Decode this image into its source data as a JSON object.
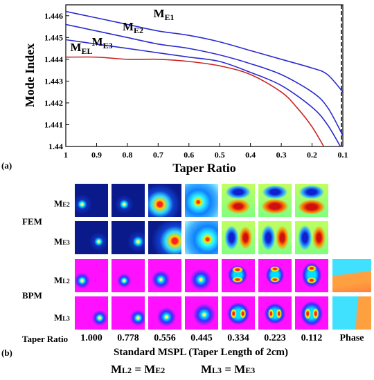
{
  "panel_a_label": "(a)",
  "panel_b_label": "(b)",
  "chart_data": {
    "type": "line",
    "xlabel": "Taper Ratio",
    "ylabel": "Mode Index",
    "xlim": [
      1,
      0.1
    ],
    "ylim": [
      1.44,
      1.4465
    ],
    "x_ticks": [
      "1",
      "0.9",
      "0.8",
      "0.7",
      "0.6",
      "0.5",
      "0.4",
      "0.3",
      "0.2",
      "0.1"
    ],
    "y_ticks": [
      "1.44",
      "1.441",
      "1.442",
      "1.443",
      "1.444",
      "1.445",
      "1.446"
    ],
    "x_reversed": true,
    "vertical_dashed_line_x": 0.1,
    "series": [
      {
        "name": "ME1",
        "color": "#2a2ad0",
        "points": [
          [
            1.0,
            1.4462
          ],
          [
            0.9,
            1.4459
          ],
          [
            0.8,
            1.4456
          ],
          [
            0.7,
            1.4453
          ],
          [
            0.6,
            1.4451
          ],
          [
            0.5,
            1.4448
          ],
          [
            0.4,
            1.4444
          ],
          [
            0.3,
            1.444
          ],
          [
            0.2,
            1.4436
          ],
          [
            0.15,
            1.4433
          ],
          [
            0.1,
            1.4425
          ]
        ]
      },
      {
        "name": "ME2",
        "color": "#2a2ad0",
        "points": [
          [
            1.0,
            1.4456
          ],
          [
            0.9,
            1.4453
          ],
          [
            0.8,
            1.445
          ],
          [
            0.7,
            1.4447
          ],
          [
            0.6,
            1.4445
          ],
          [
            0.5,
            1.4442
          ],
          [
            0.4,
            1.4438
          ],
          [
            0.3,
            1.4433
          ],
          [
            0.2,
            1.4425
          ],
          [
            0.15,
            1.4418
          ],
          [
            0.1,
            1.4405
          ]
        ]
      },
      {
        "name": "ME3",
        "color": "#2a2ad0",
        "points": [
          [
            1.0,
            1.4449
          ],
          [
            0.9,
            1.4447
          ],
          [
            0.8,
            1.4445
          ],
          [
            0.7,
            1.4443
          ],
          [
            0.6,
            1.4441
          ],
          [
            0.5,
            1.4439
          ],
          [
            0.4,
            1.4434
          ],
          [
            0.3,
            1.4428
          ],
          [
            0.2,
            1.4418
          ],
          [
            0.15,
            1.441
          ],
          [
            0.1,
            1.4398
          ]
        ]
      },
      {
        "name": "MEL",
        "color": "#cc2222",
        "points": [
          [
            1.0,
            1.4441
          ],
          [
            0.9,
            1.4441
          ],
          [
            0.8,
            1.444
          ],
          [
            0.7,
            1.444
          ],
          [
            0.6,
            1.4439
          ],
          [
            0.5,
            1.4437
          ],
          [
            0.4,
            1.4433
          ],
          [
            0.3,
            1.4425
          ],
          [
            0.25,
            1.4418
          ],
          [
            0.2,
            1.4409
          ],
          [
            0.15,
            1.4397
          ]
        ]
      }
    ],
    "curve_labels": [
      {
        "main": "M",
        "sub": "E1",
        "series": "ME1"
      },
      {
        "main": "M",
        "sub": "E2",
        "series": "ME2"
      },
      {
        "main": "M",
        "sub": "E3",
        "series": "ME3"
      },
      {
        "main": "M",
        "sub": "EL",
        "series": "MEL"
      }
    ]
  },
  "fem": {
    "title": "FEM",
    "rows": [
      {
        "main": "M",
        "sub": "E2"
      },
      {
        "main": "M",
        "sub": "E3"
      }
    ]
  },
  "bpm": {
    "title": "BPM",
    "rows": [
      {
        "main": "M",
        "sub": "L2"
      },
      {
        "main": "M",
        "sub": "L3"
      }
    ]
  },
  "taper_caption": "Taper Ratio",
  "taper_ratios": [
    "1.000",
    "0.778",
    "0.556",
    "0.445",
    "0.334",
    "0.223",
    "0.112"
  ],
  "phase_label": "Phase",
  "bottom_title": "Standard MSPL (Taper Length of 2cm)",
  "equations": [
    {
      "lhs_main": "M",
      "lhs_sub": "L2",
      "rhs_main": "M",
      "rhs_sub": "E2"
    },
    {
      "lhs_main": "M",
      "lhs_sub": "L3",
      "rhs_main": "M",
      "rhs_sub": "E3"
    }
  ]
}
